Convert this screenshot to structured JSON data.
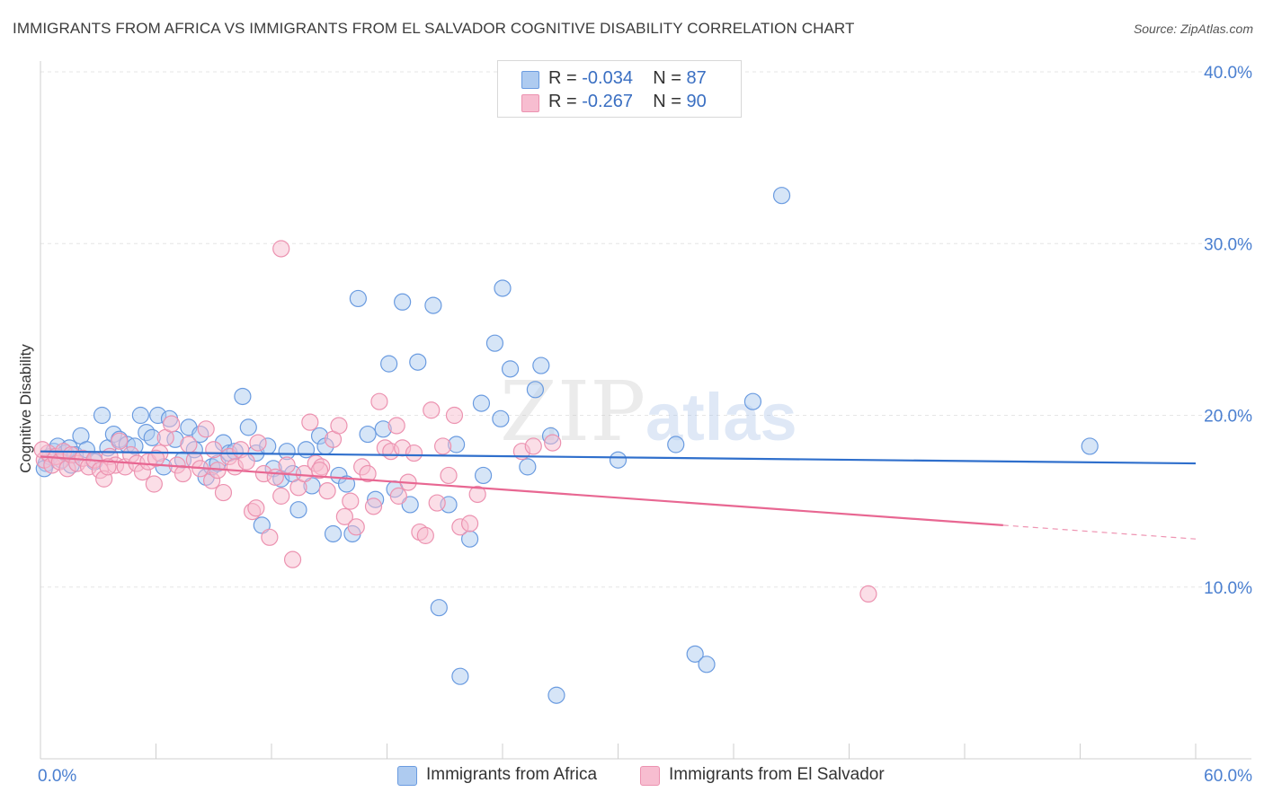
{
  "header": {
    "title": "IMMIGRANTS FROM AFRICA VS IMMIGRANTS FROM EL SALVADOR COGNITIVE DISABILITY CORRELATION CHART",
    "source": "Source: ZipAtlas.com"
  },
  "legend_top": {
    "rows": [
      {
        "r_label": "R =",
        "r_value": "-0.034",
        "n_label": "N =",
        "n_value": "87"
      },
      {
        "r_label": "R =",
        "r_value": "-0.267",
        "n_label": "N =",
        "n_value": "90"
      }
    ]
  },
  "legend_bottom": {
    "items": [
      {
        "label": "Immigrants from Africa"
      },
      {
        "label": "Immigrants from El Salvador"
      }
    ]
  },
  "watermark": {
    "part1": "ZIP",
    "part2": "atlas"
  },
  "colors": {
    "africa_fill": "#aecbf0",
    "africa_stroke": "#6a9be0",
    "africa_line": "#2f6fcc",
    "salvador_fill": "#f7bdd0",
    "salvador_stroke": "#ec92b0",
    "salvador_line": "#e86792",
    "tick_label": "#4a7fd0",
    "grid": "#e6e6e6"
  },
  "chart_data": {
    "type": "scatter",
    "title": "IMMIGRANTS FROM AFRICA VS IMMIGRANTS FROM EL SALVADOR COGNITIVE DISABILITY CORRELATION CHART",
    "xlabel": "",
    "ylabel": "Cognitive Disability",
    "xlim": [
      0,
      60
    ],
    "ylim": [
      0,
      40
    ],
    "x_tick_labels": [
      "0.0%",
      "60.0%"
    ],
    "y_ticks": [
      10,
      20,
      30,
      40
    ],
    "y_tick_labels": [
      "10.0%",
      "20.0%",
      "30.0%",
      "40.0%"
    ],
    "grid": true,
    "legend_position": "bottom",
    "series": [
      {
        "name": "Immigrants from Africa",
        "r": -0.034,
        "n": 87,
        "trend": {
          "x": [
            0,
            60
          ],
          "y": [
            17.9,
            17.2
          ],
          "dashed_from": null
        },
        "points": [
          [
            0.3,
            17.2
          ],
          [
            0.5,
            17.6
          ],
          [
            0.7,
            17.9
          ],
          [
            0.9,
            18.2
          ],
          [
            1.1,
            17.4
          ],
          [
            1.3,
            17.8
          ],
          [
            1.5,
            18.1
          ],
          [
            1.8,
            17.7
          ],
          [
            2.1,
            18.8
          ],
          [
            2.4,
            18.0
          ],
          [
            2.8,
            17.3
          ],
          [
            3.2,
            20.0
          ],
          [
            3.5,
            18.1
          ],
          [
            3.8,
            18.9
          ],
          [
            4.1,
            18.6
          ],
          [
            4.5,
            18.3
          ],
          [
            4.9,
            18.2
          ],
          [
            5.2,
            20.0
          ],
          [
            5.5,
            19.0
          ],
          [
            5.8,
            18.7
          ],
          [
            6.1,
            20.0
          ],
          [
            6.4,
            17.0
          ],
          [
            6.7,
            19.8
          ],
          [
            7.0,
            18.6
          ],
          [
            7.4,
            17.4
          ],
          [
            7.7,
            19.3
          ],
          [
            8.0,
            18.0
          ],
          [
            8.3,
            18.9
          ],
          [
            8.6,
            16.4
          ],
          [
            8.9,
            17.0
          ],
          [
            9.2,
            17.2
          ],
          [
            9.5,
            18.4
          ],
          [
            9.8,
            17.8
          ],
          [
            10.1,
            17.9
          ],
          [
            10.5,
            21.1
          ],
          [
            10.8,
            19.3
          ],
          [
            11.2,
            17.8
          ],
          [
            11.5,
            13.6
          ],
          [
            11.8,
            18.2
          ],
          [
            12.1,
            16.9
          ],
          [
            12.5,
            16.3
          ],
          [
            12.8,
            17.9
          ],
          [
            13.1,
            16.6
          ],
          [
            13.4,
            14.5
          ],
          [
            13.8,
            18.0
          ],
          [
            14.1,
            15.9
          ],
          [
            14.5,
            18.8
          ],
          [
            14.8,
            18.2
          ],
          [
            15.2,
            13.1
          ],
          [
            15.5,
            16.5
          ],
          [
            15.9,
            16.0
          ],
          [
            16.2,
            13.1
          ],
          [
            16.5,
            26.8
          ],
          [
            17.0,
            18.9
          ],
          [
            17.4,
            15.1
          ],
          [
            17.8,
            19.2
          ],
          [
            18.1,
            23.0
          ],
          [
            18.4,
            15.7
          ],
          [
            18.8,
            26.6
          ],
          [
            19.2,
            14.8
          ],
          [
            19.6,
            23.1
          ],
          [
            20.4,
            26.4
          ],
          [
            20.7,
            8.8
          ],
          [
            21.2,
            14.8
          ],
          [
            21.6,
            18.3
          ],
          [
            21.8,
            4.8
          ],
          [
            22.3,
            12.8
          ],
          [
            22.9,
            20.7
          ],
          [
            23.0,
            16.5
          ],
          [
            23.6,
            24.2
          ],
          [
            23.9,
            19.8
          ],
          [
            24.0,
            27.4
          ],
          [
            24.4,
            22.7
          ],
          [
            25.3,
            17.0
          ],
          [
            25.7,
            21.5
          ],
          [
            26.0,
            22.9
          ],
          [
            26.5,
            18.8
          ],
          [
            26.8,
            3.7
          ],
          [
            30.0,
            17.4
          ],
          [
            33.0,
            18.3
          ],
          [
            34.0,
            6.1
          ],
          [
            34.6,
            5.5
          ],
          [
            37.0,
            20.8
          ],
          [
            38.5,
            32.8
          ],
          [
            54.5,
            18.2
          ],
          [
            0.2,
            16.9
          ],
          [
            1.6,
            17.1
          ]
        ]
      },
      {
        "name": "Immigrants from El Salvador",
        "r": -0.267,
        "n": 90,
        "trend": {
          "x": [
            0,
            60
          ],
          "y": [
            17.6,
            12.8
          ],
          "dashed_from": 50
        },
        "points": [
          [
            0.2,
            17.4
          ],
          [
            0.4,
            17.8
          ],
          [
            0.6,
            17.1
          ],
          [
            0.8,
            17.6
          ],
          [
            1.0,
            17.3
          ],
          [
            1.2,
            17.9
          ],
          [
            1.4,
            16.9
          ],
          [
            1.6,
            17.7
          ],
          [
            1.9,
            17.2
          ],
          [
            2.2,
            17.5
          ],
          [
            2.5,
            17.0
          ],
          [
            2.8,
            17.4
          ],
          [
            3.1,
            16.8
          ],
          [
            3.3,
            16.3
          ],
          [
            3.6,
            17.6
          ],
          [
            3.9,
            17.1
          ],
          [
            4.1,
            18.5
          ],
          [
            4.4,
            17.0
          ],
          [
            4.7,
            17.7
          ],
          [
            5.0,
            17.2
          ],
          [
            5.3,
            16.7
          ],
          [
            5.6,
            17.3
          ],
          [
            5.9,
            16.0
          ],
          [
            6.2,
            17.8
          ],
          [
            6.5,
            18.7
          ],
          [
            6.8,
            19.5
          ],
          [
            7.1,
            17.1
          ],
          [
            7.4,
            16.6
          ],
          [
            7.7,
            18.3
          ],
          [
            8.0,
            17.4
          ],
          [
            8.3,
            16.9
          ],
          [
            8.6,
            19.2
          ],
          [
            8.9,
            16.2
          ],
          [
            9.2,
            16.8
          ],
          [
            9.5,
            15.5
          ],
          [
            9.8,
            17.6
          ],
          [
            10.1,
            17.0
          ],
          [
            10.4,
            18.0
          ],
          [
            10.7,
            17.3
          ],
          [
            11.0,
            14.4
          ],
          [
            11.3,
            18.4
          ],
          [
            11.6,
            16.6
          ],
          [
            11.9,
            12.9
          ],
          [
            12.2,
            16.4
          ],
          [
            12.5,
            15.3
          ],
          [
            12.8,
            17.1
          ],
          [
            13.1,
            11.6
          ],
          [
            13.4,
            15.8
          ],
          [
            13.7,
            16.6
          ],
          [
            14.0,
            19.6
          ],
          [
            14.3,
            17.2
          ],
          [
            14.6,
            17.0
          ],
          [
            14.9,
            15.6
          ],
          [
            15.2,
            18.6
          ],
          [
            15.5,
            19.4
          ],
          [
            15.8,
            14.1
          ],
          [
            16.1,
            15.0
          ],
          [
            16.4,
            13.5
          ],
          [
            16.7,
            17.0
          ],
          [
            17.0,
            16.6
          ],
          [
            17.3,
            14.7
          ],
          [
            17.6,
            20.8
          ],
          [
            17.9,
            18.1
          ],
          [
            18.2,
            17.9
          ],
          [
            18.5,
            19.4
          ],
          [
            18.8,
            18.1
          ],
          [
            19.1,
            16.1
          ],
          [
            19.4,
            17.8
          ],
          [
            19.7,
            13.2
          ],
          [
            20.0,
            13.0
          ],
          [
            20.3,
            20.3
          ],
          [
            20.6,
            14.9
          ],
          [
            20.9,
            18.2
          ],
          [
            21.2,
            16.5
          ],
          [
            21.5,
            20.0
          ],
          [
            21.8,
            13.5
          ],
          [
            22.3,
            13.7
          ],
          [
            22.7,
            15.4
          ],
          [
            14.5,
            16.8
          ],
          [
            18.6,
            15.3
          ],
          [
            25.0,
            17.9
          ],
          [
            25.6,
            18.2
          ],
          [
            26.6,
            18.4
          ],
          [
            43.0,
            9.6
          ],
          [
            12.5,
            29.7
          ],
          [
            11.2,
            14.6
          ],
          [
            9.0,
            18.0
          ],
          [
            6.0,
            17.5
          ],
          [
            3.5,
            17.0
          ],
          [
            0.1,
            18.0
          ]
        ]
      }
    ]
  }
}
